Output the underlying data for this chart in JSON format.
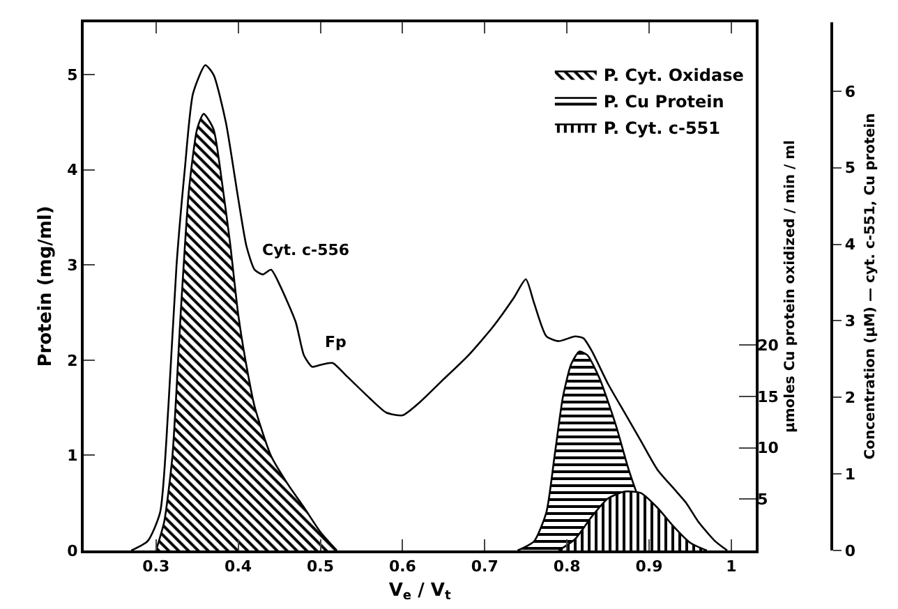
{
  "chart_data": {
    "type": "line",
    "xlabel": "V$_{e}$ / V$_{t}$",
    "ylabel": "Protein (mg/ml)",
    "y2label": "µmoles Cu protein oxidized / min / ml",
    "y3label": "Concentration (µM) — cyt. c-551, Cu protein",
    "xlim": [
      0.212,
      1.03
    ],
    "xticks": [
      0.3,
      0.4,
      0.5,
      0.6,
      0.7,
      0.8,
      0.9,
      1.0
    ],
    "ylim": [
      0,
      5.55
    ],
    "yticks": [
      0,
      1,
      2,
      3,
      4,
      5
    ],
    "y2lim": [
      0,
      51.4
    ],
    "y2ticks": [
      5,
      10,
      15,
      20
    ],
    "y3lim": [
      0,
      6.9
    ],
    "y3ticks": [
      0,
      1,
      2,
      3,
      4,
      5,
      6
    ],
    "grid": false,
    "legend": "top right",
    "marker": "none",
    "line_style": "solid",
    "series": [
      {
        "color": "#000000",
        "x": [
          0.27,
          0.29,
          0.305,
          0.315,
          0.325,
          0.335,
          0.345,
          0.36,
          0.37,
          0.385,
          0.4,
          0.41,
          0.42,
          0.43,
          0.44,
          0.45,
          0.47,
          0.48,
          0.49,
          0.5,
          0.515,
          0.53,
          0.56,
          0.58,
          0.6,
          0.62,
          0.65,
          0.68,
          0.71,
          0.735,
          0.75,
          0.76,
          0.775,
          0.79,
          0.81,
          0.82,
          0.83,
          0.85,
          0.87,
          0.89,
          0.91,
          0.93,
          0.945,
          0.96,
          0.98,
          0.995
        ],
        "values": [
          0,
          0.1,
          0.4,
          1.5,
          3.0,
          4.0,
          4.8,
          5.1,
          5.0,
          4.5,
          3.7,
          3.2,
          2.95,
          2.9,
          2.95,
          2.8,
          2.4,
          2.05,
          1.93,
          1.95,
          1.97,
          1.85,
          1.6,
          1.45,
          1.42,
          1.55,
          1.8,
          2.05,
          2.35,
          2.65,
          2.85,
          2.6,
          2.25,
          2.2,
          2.25,
          2.23,
          2.1,
          1.75,
          1.45,
          1.15,
          0.85,
          0.65,
          0.5,
          0.3,
          0.1,
          0
        ]
      },
      {
        "type": "area",
        "name": "P. Cyt. Oxidase",
        "color": "#000000",
        "axis": "y2",
        "x": [
          0.3,
          0.31,
          0.32,
          0.33,
          0.34,
          0.35,
          0.358,
          0.37,
          0.38,
          0.39,
          0.4,
          0.41,
          0.42,
          0.44,
          0.46,
          0.48,
          0.5,
          0.52
        ],
        "values": [
          0,
          2.8,
          9.2,
          23,
          35,
          41,
          42.5,
          41,
          36,
          30,
          23,
          18,
          14,
          9.2,
          6.5,
          4.2,
          1.8,
          0
        ]
      },
      {
        "type": "area",
        "name": "P. Cu Protein",
        "color": "#000000",
        "axis": "y3",
        "x": [
          0.74,
          0.76,
          0.775,
          0.785,
          0.795,
          0.805,
          0.815,
          0.825,
          0.84,
          0.86,
          0.875,
          0.89,
          0.91,
          0.93,
          0.95,
          0.97
        ],
        "values": [
          0,
          0.12,
          0.5,
          1.24,
          2.0,
          2.43,
          2.6,
          2.55,
          2.24,
          1.62,
          1.06,
          0.62,
          0.31,
          0.12,
          0.02,
          0
        ]
      },
      {
        "type": "area",
        "name": "P. Cyt. c-551",
        "color": "#000000",
        "axis": "y3",
        "x": [
          0.79,
          0.81,
          0.83,
          0.85,
          0.87,
          0.89,
          0.91,
          0.93,
          0.95,
          0.97
        ],
        "values": [
          0,
          0.15,
          0.44,
          0.68,
          0.77,
          0.75,
          0.56,
          0.31,
          0.1,
          0
        ]
      }
    ],
    "annotations": [
      {
        "text": "Cyt. c-556",
        "x": 0.44,
        "y": 2.95
      },
      {
        "text": "Fp",
        "x": 0.515,
        "y": 1.97
      }
    ]
  }
}
